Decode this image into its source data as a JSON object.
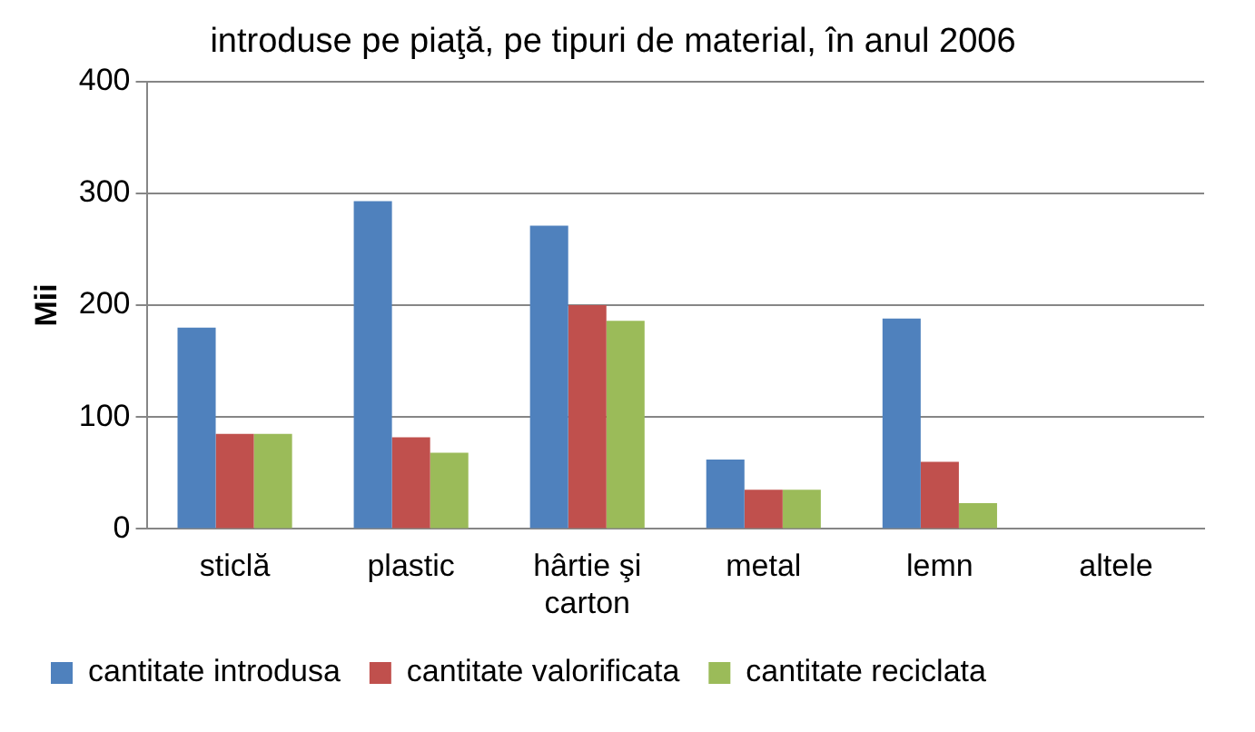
{
  "chart_data": {
    "type": "bar",
    "title": "introduse pe piaţă, pe tipuri de material, în anul 2006",
    "ylabel": "Mii",
    "categories": [
      "sticlă",
      "plastic",
      "hârtie şi carton",
      "metal",
      "lemn",
      "altele"
    ],
    "series": [
      {
        "name": "cantitate introdusa",
        "color": "#4f81bd",
        "values": [
          180,
          293,
          271,
          62,
          188,
          0
        ]
      },
      {
        "name": "cantitate valorificata",
        "color": "#c0504d",
        "values": [
          85,
          82,
          200,
          35,
          60,
          0
        ]
      },
      {
        "name": "cantitate reciclata",
        "color": "#9bbb59",
        "values": [
          85,
          68,
          186,
          35,
          23,
          0
        ]
      }
    ],
    "ylim": [
      0,
      400
    ],
    "yticks": [
      0,
      100,
      200,
      300,
      400
    ],
    "grid": "y",
    "legend": "bottom"
  }
}
